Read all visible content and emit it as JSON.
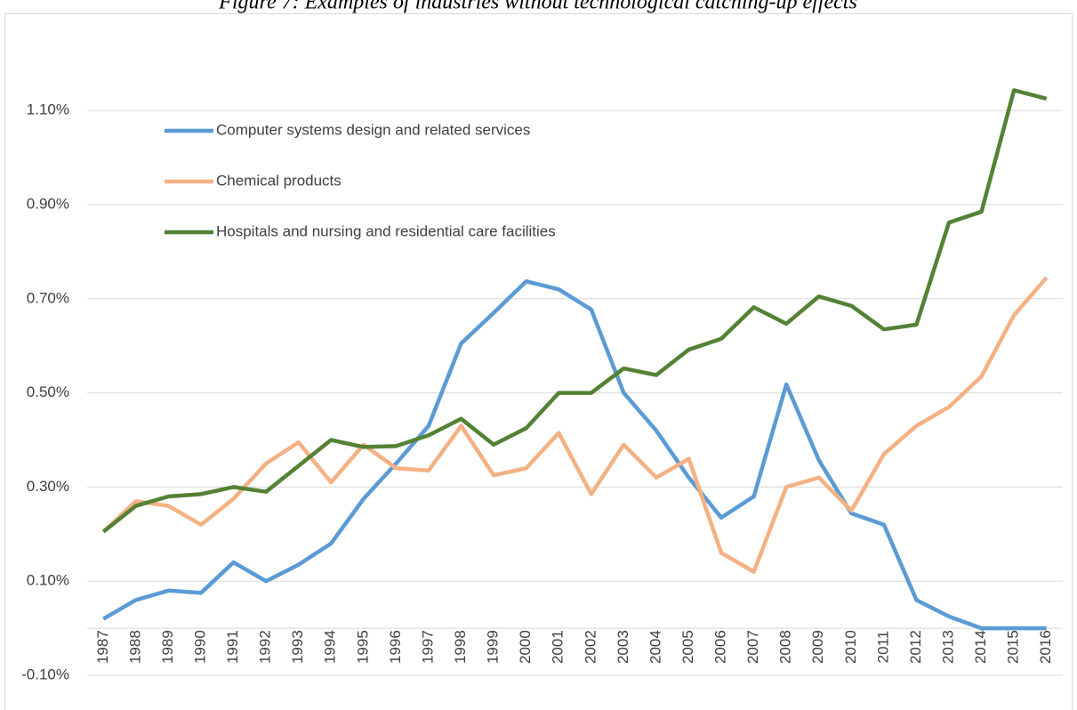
{
  "chart_data": {
    "type": "line",
    "title": "Figure 7: Examples of industries without technological catching-up effects",
    "categories": [
      "1987",
      "1988",
      "1989",
      "1990",
      "1991",
      "1992",
      "1993",
      "1994",
      "1995",
      "1996",
      "1997",
      "1998",
      "1999",
      "2000",
      "2001",
      "2002",
      "2003",
      "2004",
      "2005",
      "2006",
      "2007",
      "2008",
      "2009",
      "2010",
      "2011",
      "2012",
      "2013",
      "2014",
      "2015",
      "2016"
    ],
    "series": [
      {
        "name": "Computer systems design and related services",
        "color": "#5b9bd5",
        "values": [
          0.02,
          0.06,
          0.08,
          0.075,
          0.14,
          0.1,
          0.135,
          0.18,
          0.275,
          0.35,
          0.43,
          0.605,
          0.67,
          0.737,
          0.72,
          0.677,
          0.5,
          0.42,
          0.32,
          0.235,
          0.28,
          0.518,
          0.357,
          0.244,
          0.22,
          0.06,
          0.025,
          0.0,
          0.0,
          0.0
        ]
      },
      {
        "name": "Chemical products",
        "color": "#f4b183",
        "values": [
          0.205,
          0.27,
          0.26,
          0.22,
          0.275,
          0.35,
          0.395,
          0.31,
          0.39,
          0.34,
          0.335,
          0.43,
          0.325,
          0.34,
          0.415,
          0.285,
          0.39,
          0.32,
          0.36,
          0.16,
          0.12,
          0.3,
          0.32,
          0.25,
          0.37,
          0.43,
          0.47,
          0.535,
          0.665,
          0.745
        ]
      },
      {
        "name": "Hospitals and nursing and residential care facilities",
        "color": "#548235",
        "values": [
          0.205,
          0.26,
          0.28,
          0.285,
          0.3,
          0.29,
          0.345,
          0.4,
          0.385,
          0.387,
          0.41,
          0.445,
          0.39,
          0.425,
          0.5,
          0.5,
          0.552,
          0.538,
          0.592,
          0.615,
          0.682,
          0.647,
          0.705,
          0.685,
          0.635,
          0.645,
          0.862,
          0.885,
          1.143,
          1.125
        ]
      }
    ],
    "ylim": [
      -0.1,
      1.3
    ],
    "yticks": [
      {
        "value": -0.1,
        "label": "-0.10%"
      },
      {
        "value": 0.1,
        "label": "0.10%"
      },
      {
        "value": 0.3,
        "label": "0.30%"
      },
      {
        "value": 0.5,
        "label": "0.50%"
      },
      {
        "value": 0.7,
        "label": "0.70%"
      },
      {
        "value": 0.9,
        "label": "0.90%"
      },
      {
        "value": 1.1,
        "label": "1.10%"
      }
    ],
    "grid": true
  }
}
